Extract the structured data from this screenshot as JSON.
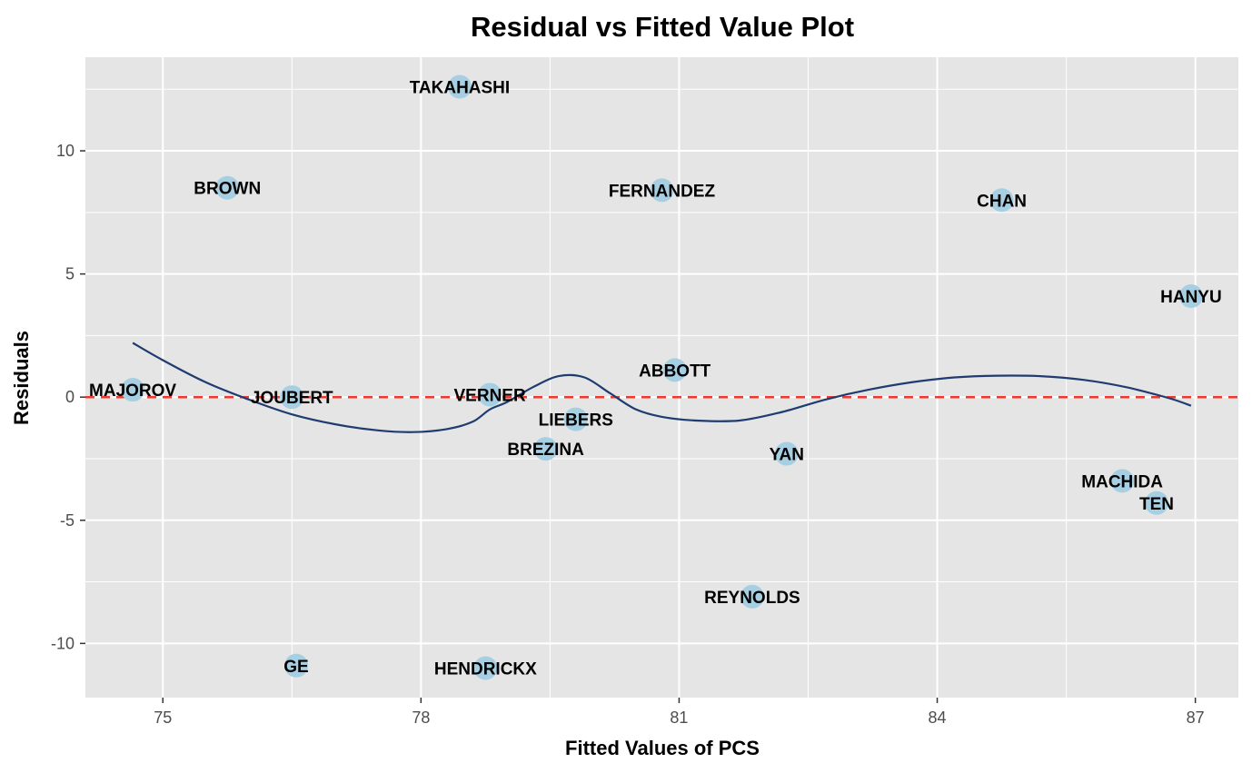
{
  "chart_data": {
    "type": "scatter",
    "title": "Residual vs Fitted Value Plot",
    "xlabel": "Fitted Values of PCS",
    "ylabel": "Residuals",
    "xlim": [
      74.1,
      87.5
    ],
    "ylim": [
      -12.2,
      13.8
    ],
    "x_major_ticks": [
      75,
      78,
      81,
      84,
      87
    ],
    "y_major_ticks": [
      -10,
      -5,
      0,
      5,
      10
    ],
    "grid": true,
    "colors": {
      "panel": "#e5e5e5",
      "grid": "#ffffff",
      "point": "#a6cfe3",
      "smooth": "#1f3c70",
      "reference": "#ee3a2e"
    },
    "points": [
      {
        "label": "TAKAHASHI",
        "x": 78.45,
        "y": 12.6
      },
      {
        "label": "BROWN",
        "x": 75.75,
        "y": 8.5
      },
      {
        "label": "FERNANDEZ",
        "x": 80.8,
        "y": 8.4
      },
      {
        "label": "CHAN",
        "x": 84.75,
        "y": 8.0
      },
      {
        "label": "HANYU",
        "x": 86.95,
        "y": 4.1
      },
      {
        "label": "ABBOTT",
        "x": 80.95,
        "y": 1.1
      },
      {
        "label": "MAJOROV",
        "x": 74.65,
        "y": 0.3
      },
      {
        "label": "VERNER",
        "x": 78.8,
        "y": 0.1
      },
      {
        "label": "JOUBERT",
        "x": 76.5,
        "y": 0.0
      },
      {
        "label": "LIEBERS",
        "x": 79.8,
        "y": -0.9
      },
      {
        "label": "BREZINA",
        "x": 79.45,
        "y": -2.1
      },
      {
        "label": "YAN",
        "x": 82.25,
        "y": -2.3
      },
      {
        "label": "MACHIDA",
        "x": 86.15,
        "y": -3.4
      },
      {
        "label": "TEN",
        "x": 86.55,
        "y": -4.3
      },
      {
        "label": "REYNOLDS",
        "x": 81.85,
        "y": -8.1
      },
      {
        "label": "GE",
        "x": 76.55,
        "y": -10.9
      },
      {
        "label": "HENDRICKX",
        "x": 78.75,
        "y": -11.0
      }
    ],
    "smooth": {
      "x": [
        74.65,
        75.0,
        75.5,
        76.0,
        76.5,
        77.0,
        77.5,
        77.9,
        78.3,
        78.6,
        78.8,
        79.0,
        79.3,
        79.6,
        79.9,
        80.2,
        80.5,
        80.8,
        81.2,
        81.7,
        82.2,
        82.7,
        83.2,
        83.7,
        84.2,
        84.7,
        85.2,
        85.7,
        86.2,
        86.7,
        86.95
      ],
      "y": [
        2.2,
        1.5,
        0.6,
        -0.1,
        -0.7,
        -1.1,
        -1.35,
        -1.42,
        -1.3,
        -1.0,
        -0.5,
        -0.2,
        0.4,
        0.85,
        0.8,
        0.15,
        -0.5,
        -0.8,
        -0.95,
        -0.95,
        -0.6,
        -0.1,
        0.3,
        0.6,
        0.8,
        0.87,
        0.85,
        0.7,
        0.4,
        -0.05,
        -0.35
      ]
    },
    "reference_line_y": 0
  }
}
